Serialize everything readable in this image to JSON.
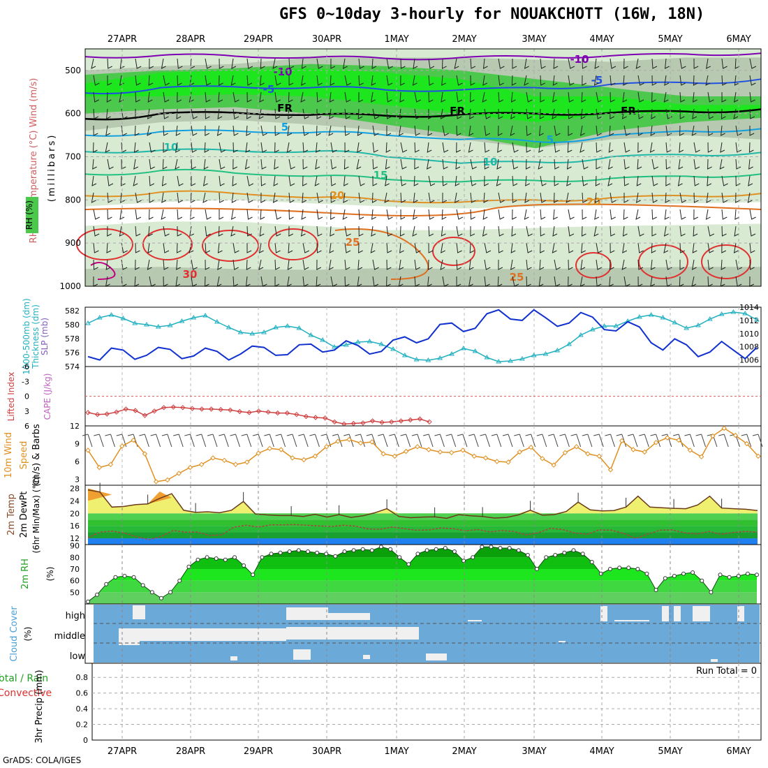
{
  "title": "GFS 0~10day 3-hourly for NOUAKCHOTT (16W, 18N)",
  "credit": "GrADS: COLA/IGES",
  "dates": [
    "27APR",
    "28APR",
    "29APR",
    "30APR",
    "1MAY",
    "2MAY",
    "3MAY",
    "4MAY",
    "5MAY",
    "6MAY"
  ],
  "colors": {
    "rh_light": "#d9ead3",
    "rh_mid": "#b7c9b1",
    "rh_green": "#4cc84c",
    "rh_bright": "#1ee61e",
    "temp_purple": "#7f00b2",
    "temp_blue": "#2050e0",
    "temp_freeze": "#000000",
    "temp_cyan": "#10a0e0",
    "temp_teal": "#20b8a8",
    "temp_green": "#20c080",
    "temp_orange": "#e09020",
    "temp_dark_orange": "#e07020",
    "temp_red": "#e03030",
    "temp_magenta": "#c00080",
    "thickness": "#20b0c0",
    "slp": "#1030d0",
    "lifted": "#d04040",
    "wind10": "#e09020",
    "temp2m_fill": "#f0f070",
    "dew_fill": "#30c030",
    "rh_area": "#20c020",
    "cloud": "#6ba9d9",
    "cloud_gap": "#f0f0f0"
  },
  "chart_data": [
    {
      "type": "heatmap",
      "panel": "upper-air",
      "ylabel": "(millibars)",
      "legend": [
        "RH (%)",
        "Temperature (°C)",
        "Wind (m/s)"
      ],
      "y_ticks": [
        500,
        600,
        700,
        800,
        900,
        1000
      ],
      "ylim": [
        450,
        1000
      ],
      "contour_labels": [
        {
          "text": "-10",
          "level": -10
        },
        {
          "text": "-5",
          "level": -5
        },
        {
          "text": "FR",
          "level": 0
        },
        {
          "text": "5",
          "level": 5
        },
        {
          "text": "10",
          "level": 10
        },
        {
          "text": "15",
          "level": 15
        },
        {
          "text": "20",
          "level": 20
        },
        {
          "text": "25",
          "level": 25
        },
        {
          "text": "30",
          "level": 30
        }
      ],
      "isotherms_pressure_mb": [
        {
          "level": -10,
          "p": [
            468,
            465,
            467,
            470,
            472,
            470,
            468,
            466,
            462,
            460
          ]
        },
        {
          "level": -5,
          "p": [
            552,
            540,
            538,
            540,
            545,
            545,
            540,
            532,
            528,
            520
          ]
        },
        {
          "level": 0,
          "p": [
            612,
            600,
            598,
            603,
            605,
            602,
            600,
            598,
            595,
            590
          ]
        },
        {
          "level": 5,
          "p": [
            650,
            642,
            640,
            644,
            650,
            660,
            665,
            650,
            640,
            635
          ]
        },
        {
          "level": 10,
          "p": [
            688,
            685,
            686,
            688,
            700,
            715,
            712,
            700,
            695,
            690
          ]
        },
        {
          "level": 15,
          "p": [
            740,
            732,
            738,
            745,
            752,
            758,
            755,
            750,
            745,
            740
          ]
        },
        {
          "level": 20,
          "p": [
            790,
            782,
            785,
            795,
            802,
            805,
            800,
            795,
            790,
            785
          ]
        }
      ]
    },
    {
      "type": "line",
      "panel": "thickness-slp",
      "ylabel_left": "1000-500mb Thickness (dm)",
      "ylabel_right": "SLP (mb)",
      "y_ticks_left": [
        582,
        580,
        578,
        576,
        574
      ],
      "y_ticks_right": [
        1014,
        1012,
        1010,
        1008,
        1006
      ],
      "ylim_left": [
        574,
        582.5
      ],
      "ylim_right": [
        1005,
        1014
      ],
      "series": [
        {
          "name": "Thickness",
          "values": [
            580.2,
            581.0,
            581.4,
            580.9,
            580.2,
            580.0,
            579.7,
            579.9,
            580.5,
            581.0,
            581.3,
            580.4,
            579.6,
            578.9,
            578.7,
            578.9,
            579.6,
            579.8,
            579.5,
            578.5,
            577.8,
            576.8,
            577.1,
            577.5,
            577.6,
            577.2,
            576.5,
            575.6,
            575.0,
            574.9,
            575.2,
            575.8,
            576.6,
            576.2,
            575.3,
            574.7,
            574.8,
            575.1,
            575.6,
            575.8,
            576.3,
            577.2,
            578.5,
            579.3,
            579.8,
            579.8,
            580.5,
            581.1,
            581.4,
            581.0,
            580.3,
            579.5,
            579.9,
            580.8,
            581.5,
            581.8,
            581.6,
            580.7
          ]
        },
        {
          "name": "SLP",
          "values": [
            1006.5,
            1006.0,
            1007.8,
            1007.5,
            1006.1,
            1006.7,
            1007.9,
            1007.6,
            1006.2,
            1006.6,
            1007.8,
            1007.3,
            1006.0,
            1006.9,
            1008.1,
            1007.9,
            1006.7,
            1006.8,
            1008.3,
            1008.4,
            1007.2,
            1007.5,
            1008.9,
            1008.2,
            1006.9,
            1007.3,
            1009.0,
            1009.5,
            1008.6,
            1009.2,
            1011.4,
            1011.6,
            1010.3,
            1010.8,
            1013.0,
            1013.6,
            1012.2,
            1012.0,
            1013.6,
            1012.4,
            1011.1,
            1011.6,
            1013.2,
            1012.5,
            1010.6,
            1010.4,
            1011.8,
            1011.0,
            1008.6,
            1007.5,
            1009.2,
            1008.3,
            1006.5,
            1007.2,
            1008.8,
            1007.5,
            1006.2,
            1007.9
          ]
        }
      ]
    },
    {
      "type": "line",
      "panel": "stability",
      "ylabel_left": "Lifted Index",
      "ylabel_right": "CAPE (J/kg)",
      "y_ticks": [
        -6,
        -3,
        0,
        3,
        6
      ],
      "ylim": [
        -6,
        6
      ],
      "reference_line": 0,
      "series": [
        {
          "name": "Lifted Index",
          "values": [
            3.3,
            3.7,
            3.6,
            3.2,
            2.6,
            2.9,
            3.9,
            3.0,
            2.3,
            2.2,
            2.3,
            2.5,
            2.6,
            2.6,
            2.7,
            2.8,
            3.1,
            3.3,
            3.0,
            3.2,
            3.4,
            3.4,
            3.7,
            4.1,
            4.3,
            4.4,
            5.2,
            5.6,
            5.5,
            5.4,
            5.0,
            5.3,
            5.2,
            5.0,
            4.8,
            4.6,
            5.2
          ]
        }
      ]
    },
    {
      "type": "line",
      "panel": "wind10m",
      "ylabel": "10m Wind Speed (m/s) & Barbs",
      "y_ticks": [
        3,
        6,
        9,
        12
      ],
      "ylim": [
        2,
        12
      ],
      "series": [
        {
          "name": "10m Wind Speed",
          "values": [
            7.9,
            5.0,
            5.5,
            8.6,
            9.6,
            7.3,
            2.6,
            2.9,
            4.0,
            5.0,
            5.5,
            6.6,
            6.2,
            5.5,
            5.9,
            7.4,
            8.2,
            8.0,
            6.6,
            6.3,
            6.9,
            8.5,
            9.4,
            9.7,
            9.1,
            9.3,
            7.3,
            6.9,
            7.7,
            8.5,
            8.0,
            7.6,
            7.5,
            7.9,
            6.9,
            6.6,
            6.0,
            5.9,
            7.6,
            8.4,
            6.5,
            5.4,
            7.5,
            8.5,
            7.3,
            6.9,
            4.6,
            9.5,
            8.0,
            7.6,
            9.2,
            10.0,
            9.6,
            7.9,
            6.8,
            10.3,
            11.6,
            10.4,
            9.0,
            6.9
          ]
        }
      ]
    },
    {
      "type": "area",
      "panel": "temp-dewpoint",
      "ylabel": "2m Temp 2m DewPt (6hr Min/Max) (°C)",
      "y_ticks": [
        12,
        16,
        20,
        24,
        28
      ],
      "ylim": [
        10,
        29
      ],
      "series": [
        {
          "name": "2m Temp",
          "values": [
            27.5,
            26.8,
            22.0,
            22.2,
            22.8,
            23.0,
            24.8,
            26.3,
            21.0,
            20.3,
            20.5,
            20.2,
            21.0,
            23.8,
            19.8,
            19.5,
            19.3,
            19.3,
            19.0,
            19.7,
            18.8,
            19.6,
            18.7,
            19.2,
            20.2,
            21.5,
            19.0,
            18.6,
            18.8,
            18.9,
            18.4,
            19.6,
            19.2,
            19.0,
            18.5,
            18.7,
            19.5,
            21.0,
            19.4,
            19.6,
            20.6,
            23.6,
            21.1,
            20.8,
            20.9,
            22.0,
            25.5,
            22.0,
            21.8,
            21.6,
            21.5,
            22.7,
            25.5,
            21.7,
            21.5,
            21.3,
            20.9
          ]
        },
        {
          "name": "2m DewPt",
          "values": [
            12.2,
            14.0,
            14.3,
            13.7,
            12.5,
            11.6,
            12.6,
            14.5,
            14.0,
            14.0,
            12.9,
            13.1,
            15.6,
            16.2,
            15.6,
            16.3,
            16.3,
            16.4,
            16.2,
            16.0,
            15.8,
            16.2,
            15.9,
            15.0,
            14.9,
            15.6,
            15.1,
            14.6,
            14.7,
            15.3,
            15.1,
            14.4,
            14.8,
            14.1,
            14.5,
            14.2,
            13.1,
            13.8,
            15.2,
            14.8,
            13.7,
            13.3,
            14.7,
            14.6,
            13.6,
            12.0,
            13.4,
            14.6,
            14.7,
            13.8,
            13.4,
            14.2,
            13.3,
            13.9,
            14.2,
            14.0
          ]
        }
      ]
    },
    {
      "type": "area",
      "panel": "rh2m",
      "ylabel": "2m RH (%)",
      "y_ticks": [
        50,
        60,
        70,
        80,
        90
      ],
      "ylim": [
        40,
        91
      ],
      "series": [
        {
          "name": "2m RH",
          "values": [
            42,
            48,
            57,
            63,
            64,
            63,
            56,
            50,
            45,
            50,
            60,
            72,
            78,
            80,
            79,
            78,
            80,
            73,
            65,
            80,
            83,
            84,
            85,
            86,
            85,
            84,
            83,
            81,
            85,
            86,
            87,
            86,
            89,
            87,
            80,
            74,
            83,
            86,
            87,
            88,
            85,
            77,
            80,
            89,
            89,
            88,
            88,
            86,
            82,
            70,
            80,
            82,
            84,
            86,
            83,
            76,
            66,
            70,
            71,
            71,
            70,
            66,
            52,
            62,
            64,
            66,
            67,
            60,
            50,
            65,
            63,
            64,
            66,
            65
          ]
        }
      ]
    },
    {
      "type": "heatmap",
      "panel": "cloud-cover",
      "ylabel": "Cloud Cover (%)",
      "levels": [
        "high",
        "middle",
        "low"
      ]
    },
    {
      "type": "bar",
      "panel": "precip",
      "ylabel": "3hr Precip (mm)",
      "legend": [
        "Total / Rain",
        "Convective"
      ],
      "y_ticks": [
        0,
        0.2,
        0.4,
        0.6,
        0.8
      ],
      "ylim": [
        0,
        0.98
      ],
      "run_total_label": "Run Total = 0",
      "values": []
    }
  ]
}
